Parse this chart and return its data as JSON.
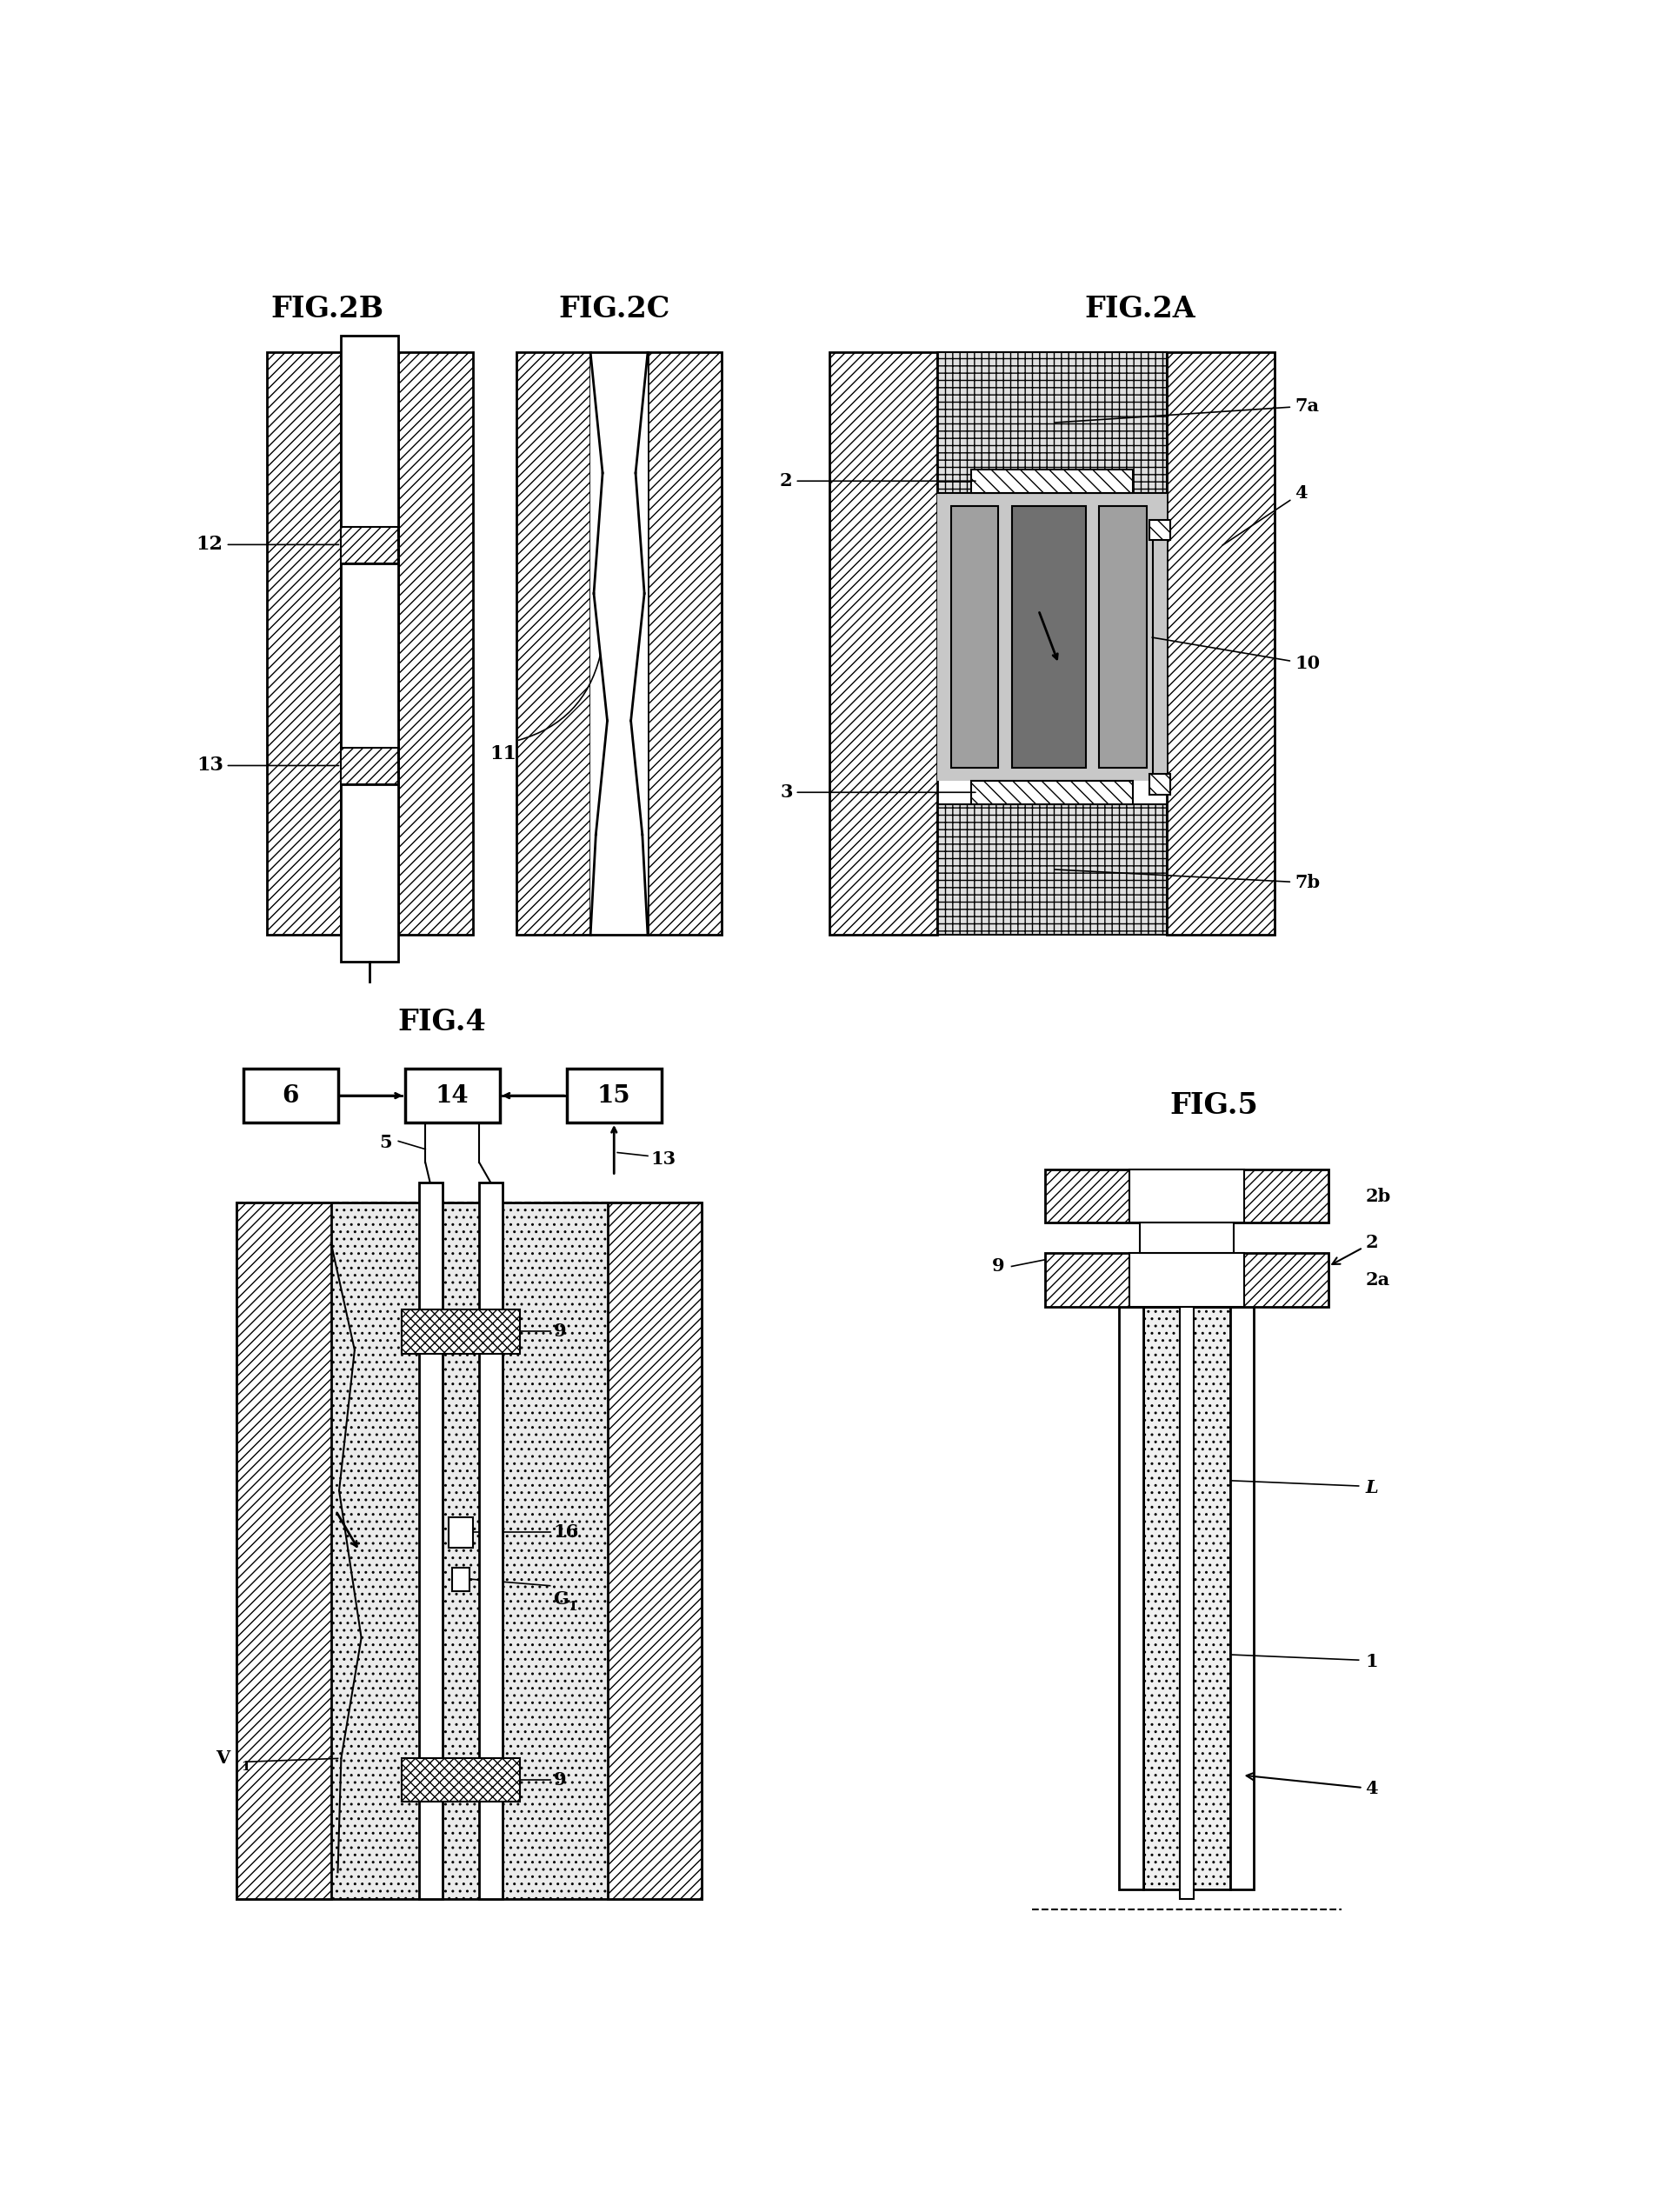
{
  "fig2b_label": "FIG.2B",
  "fig2c_label": "FIG.2C",
  "fig2a_label": "FIG.2A",
  "fig4_label": "FIG.4",
  "fig5_label": "FIG.5",
  "bg_color": "#ffffff",
  "v1_label": "V1",
  "g1_label": "G1"
}
